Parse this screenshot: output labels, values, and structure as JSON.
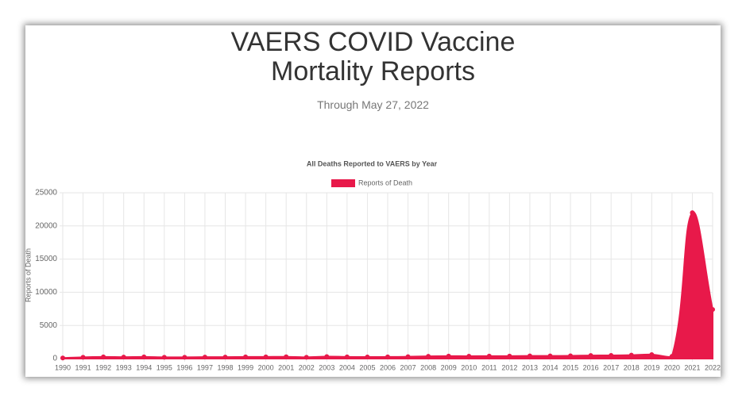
{
  "page": {
    "title": "VAERS COVID Vaccine Mortality Reports",
    "subtitle": "Through May 27, 2022"
  },
  "chart_data": {
    "type": "area",
    "title": "All Deaths Reported to VAERS by Year",
    "y_label": "Reports of Death",
    "categories": [
      "1990",
      "1991",
      "1992",
      "1993",
      "1994",
      "1995",
      "1996",
      "1997",
      "1998",
      "1999",
      "2000",
      "2001",
      "2002",
      "2003",
      "2004",
      "2005",
      "2006",
      "2007",
      "2008",
      "2009",
      "2010",
      "2011",
      "2012",
      "2013",
      "2014",
      "2015",
      "2016",
      "2017",
      "2018",
      "2019",
      "2020",
      "2021",
      "2022"
    ],
    "series": [
      {
        "name": "Reports of Death",
        "color": "#e8194a",
        "values": [
          90,
          200,
          250,
          230,
          250,
          200,
          200,
          230,
          220,
          250,
          260,
          270,
          200,
          300,
          260,
          240,
          250,
          280,
          350,
          380,
          360,
          380,
          370,
          400,
          400,
          420,
          470,
          480,
          520,
          600,
          350,
          22000,
          7400
        ]
      }
    ],
    "ylim": [
      0,
      25000
    ],
    "yticks": [
      0,
      5000,
      10000,
      15000,
      20000,
      25000
    ],
    "grid": true,
    "legend": "top"
  }
}
